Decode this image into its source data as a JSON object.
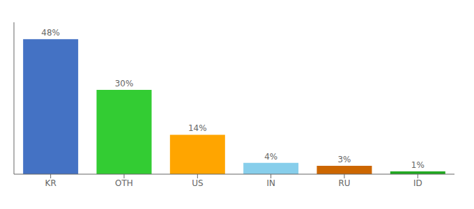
{
  "chart_data": {
    "type": "bar",
    "categories": [
      "KR",
      "OTH",
      "US",
      "IN",
      "RU",
      "ID"
    ],
    "values": [
      48,
      30,
      14,
      4,
      3,
      1
    ],
    "value_labels": [
      "48%",
      "30%",
      "14%",
      "4%",
      "3%",
      "1%"
    ],
    "colors": [
      "#4472C4",
      "#33CC33",
      "#FFA500",
      "#87CEEB",
      "#CC6600",
      "#22AA22"
    ],
    "ylim": [
      0,
      54
    ],
    "data_labels": true,
    "tick_labels": "x",
    "grid": false
  }
}
